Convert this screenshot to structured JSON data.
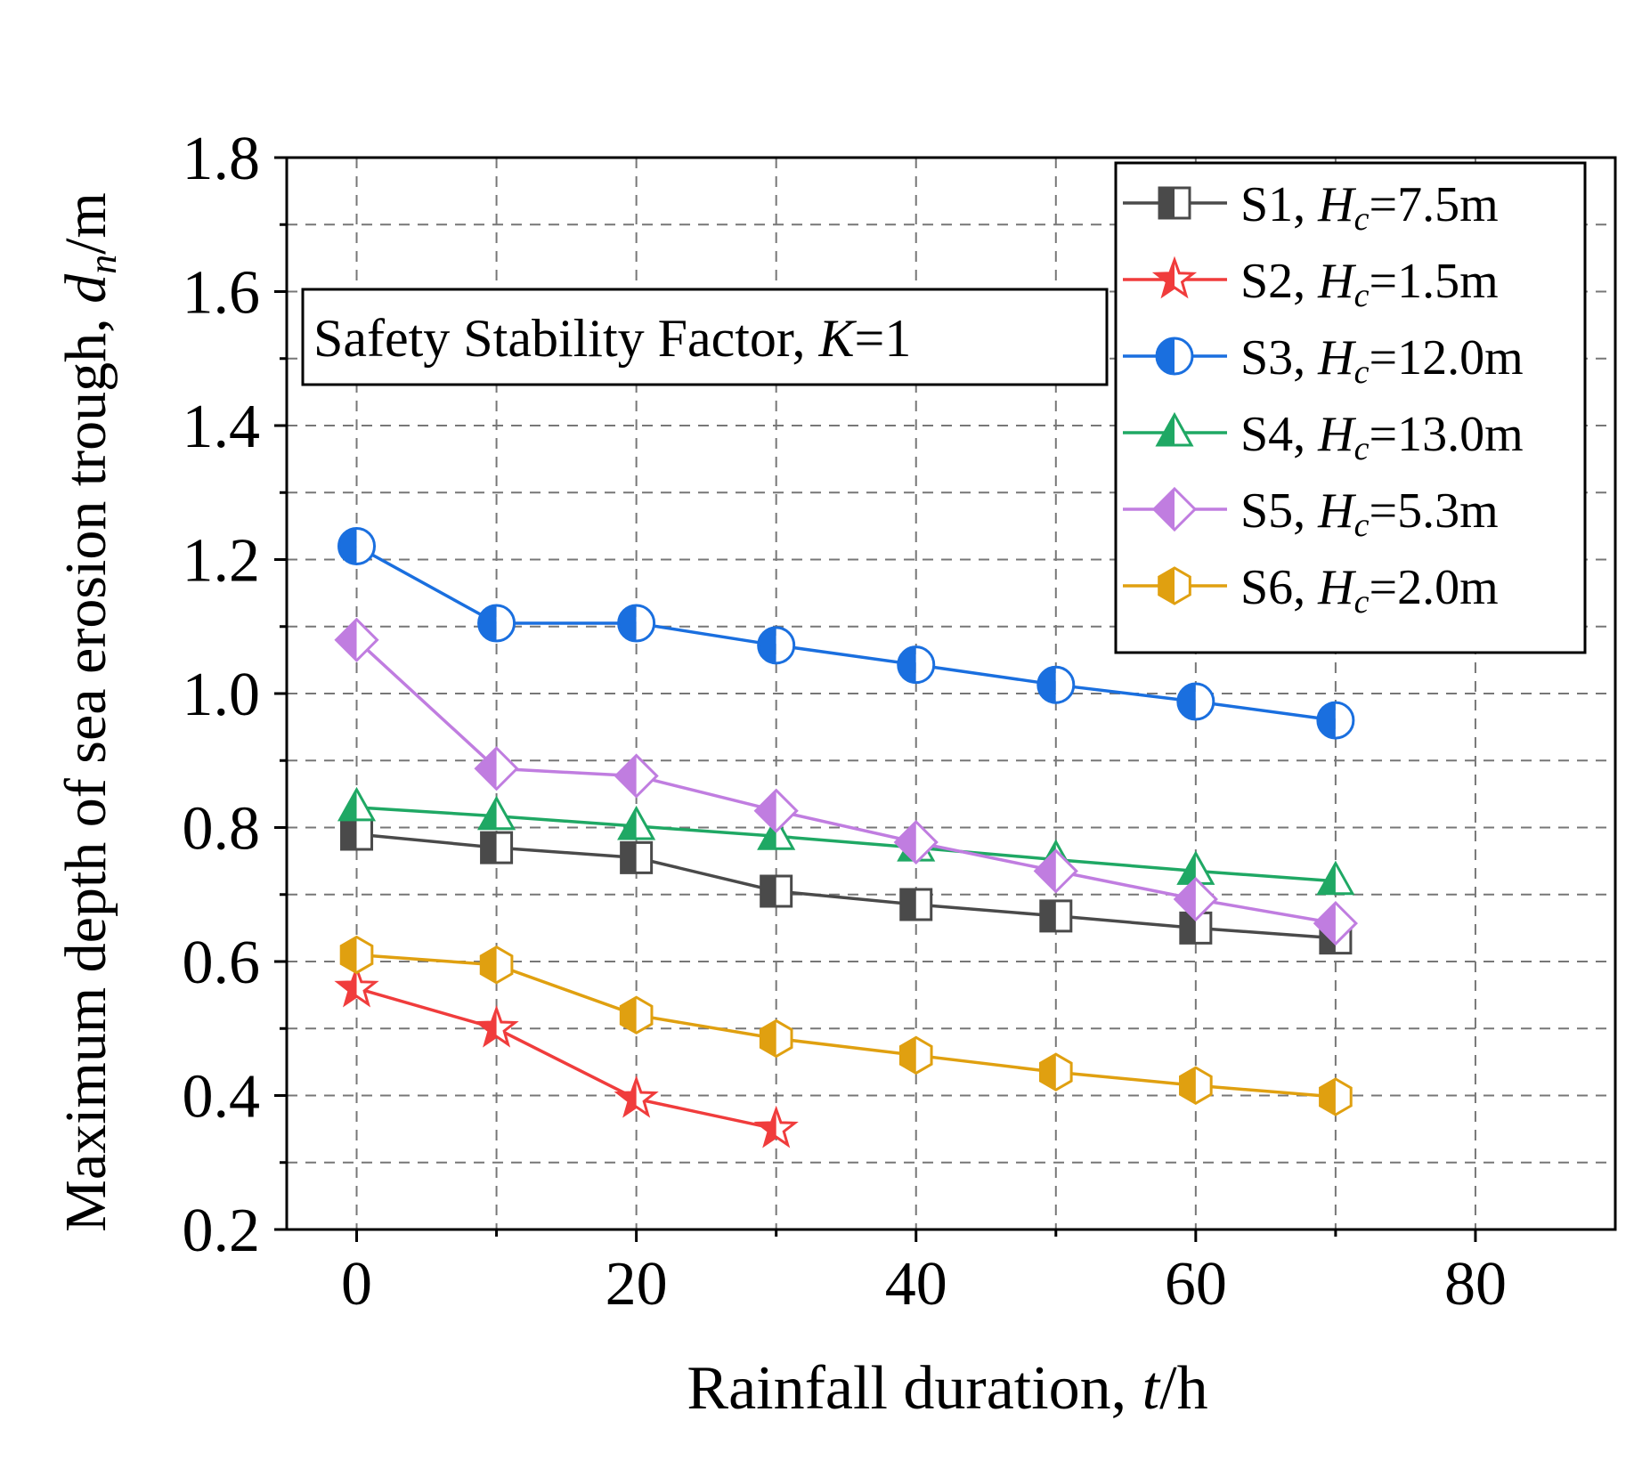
{
  "chart_data": {
    "type": "line",
    "xlabel": "Rainfall duration, ",
    "xlabel_var": "t",
    "xlabel_unit": "/h",
    "ylabel": "Maximum depth of sea erosion trough, ",
    "ylabel_var": "d",
    "ylabel_sub": "n",
    "ylabel_unit": "/m",
    "xlim": [
      -5,
      90
    ],
    "ylim": [
      0.2,
      1.8
    ],
    "xticks": [
      "0",
      "20",
      "40",
      "60",
      "80"
    ],
    "yticks": [
      "0.2",
      "0.4",
      "0.6",
      "0.8",
      "1.0",
      "1.2",
      "1.4",
      "1.6",
      "1.8"
    ],
    "annotation": {
      "text": "Safety Stability Factor, ",
      "var": "K",
      "suffix": "=1"
    },
    "series": [
      {
        "name": "S1",
        "label_var": "H",
        "label_sub": "c",
        "label_value": "=7.5m",
        "color": "#4a4a4a",
        "marker": "square",
        "x": [
          0,
          10,
          20,
          30,
          40,
          50,
          60,
          70
        ],
        "values": [
          0.79,
          0.77,
          0.755,
          0.705,
          0.685,
          0.668,
          0.65,
          0.635
        ]
      },
      {
        "name": "S2",
        "label_var": "H",
        "label_sub": "c",
        "label_value": "=1.5m",
        "color": "#f03c3c",
        "marker": "star",
        "x": [
          0,
          10,
          20,
          30
        ],
        "values": [
          0.56,
          0.5,
          0.395,
          0.35
        ]
      },
      {
        "name": "S3",
        "label_var": "H",
        "label_sub": "c",
        "label_value": "=12.0m",
        "color": "#1a6fdf",
        "marker": "circle",
        "x": [
          0,
          10,
          20,
          30,
          40,
          50,
          60,
          70
        ],
        "values": [
          1.22,
          1.105,
          1.105,
          1.072,
          1.043,
          1.013,
          0.988,
          0.96
        ]
      },
      {
        "name": "S4",
        "label_var": "H",
        "label_sub": "c",
        "label_value": "=13.0m",
        "color": "#1fa864",
        "marker": "triangle",
        "x": [
          0,
          10,
          20,
          30,
          40,
          50,
          60,
          70
        ],
        "values": [
          0.83,
          0.817,
          0.802,
          0.787,
          0.77,
          0.752,
          0.735,
          0.72
        ]
      },
      {
        "name": "S5",
        "label_var": "H",
        "label_sub": "c",
        "label_value": "=5.3m",
        "color": "#c07de0",
        "marker": "diamond",
        "x": [
          0,
          10,
          20,
          30,
          40,
          50,
          60,
          70
        ],
        "values": [
          1.08,
          0.888,
          0.877,
          0.825,
          0.778,
          0.735,
          0.693,
          0.657
        ]
      },
      {
        "name": "S6",
        "label_var": "H",
        "label_sub": "c",
        "label_value": "=2.0m",
        "color": "#e0a010",
        "marker": "hexagon",
        "x": [
          0,
          10,
          20,
          30,
          40,
          50,
          60,
          70
        ],
        "values": [
          0.61,
          0.595,
          0.52,
          0.485,
          0.46,
          0.435,
          0.415,
          0.398
        ]
      }
    ]
  }
}
